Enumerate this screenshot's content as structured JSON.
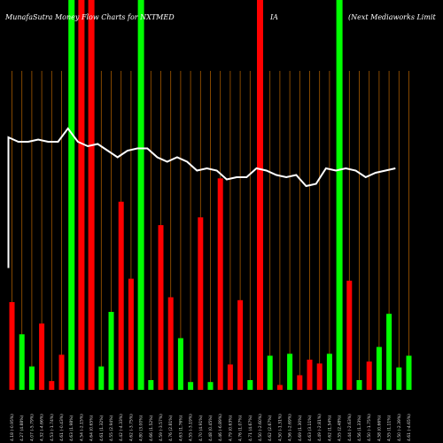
{
  "chart_data": {
    "type": "bar",
    "title_parts": [
      "MunafaSutra  Money Flow  Charts for NXTMED",
      "IA",
      "(Next Mediaworks Limit"
    ],
    "colors": {
      "up": "#00ff00",
      "down": "#ff0000",
      "grid": "#a65a00",
      "line": "#ffffff",
      "background": "#000000"
    },
    "bars": [
      {
        "label": "02 Fri Feb 2024",
        "color": "down",
        "value": 90,
        "highlight": false
      },
      {
        "label": "01 Thu Feb 2024",
        "color": "up",
        "value": 57,
        "highlight": false
      },
      {
        "label": "31 Wed Jan 2024",
        "color": "up",
        "value": 24,
        "highlight": false
      },
      {
        "label": "30 Tue Jan 2024",
        "color": "down",
        "value": 68,
        "highlight": false
      },
      {
        "label": "29 Mon Jan 2024",
        "color": "down",
        "value": 9,
        "highlight": false
      },
      {
        "label": "25 Thu Jan 2024",
        "color": "down",
        "value": 36,
        "highlight": false
      },
      {
        "label": "24 Wed Jan 2024",
        "color": "up",
        "value": 400,
        "highlight": true
      },
      {
        "label": "23 Tue Jan 2024",
        "color": "down",
        "value": 400,
        "highlight": true
      },
      {
        "label": "22 Mon Jan 2024",
        "color": "down",
        "value": 400,
        "highlight": true
      },
      {
        "label": "19 Fri Jan 2024",
        "color": "up",
        "value": 24,
        "highlight": false
      },
      {
        "label": "18 Thu Jan 2024",
        "color": "up",
        "value": 80,
        "highlight": false
      },
      {
        "label": "17 Wed Jan 2024",
        "color": "down",
        "value": 193,
        "highlight": false
      },
      {
        "label": "16 Tue Jan 2024",
        "color": "down",
        "value": 114,
        "highlight": false
      },
      {
        "label": "15 Mon Jan 2024",
        "color": "up",
        "value": 400,
        "highlight": true
      },
      {
        "label": "12 Fri Jan 2024",
        "color": "up",
        "value": 10,
        "highlight": false
      },
      {
        "label": "11 Thu Jan 2024",
        "color": "down",
        "value": 169,
        "highlight": false
      },
      {
        "label": "10 Wed Jan 2024",
        "color": "down",
        "value": 95,
        "highlight": false
      },
      {
        "label": "09 Tue Jan 2024",
        "color": "up",
        "value": 53,
        "highlight": false
      },
      {
        "label": "08 Mon Jan 2024",
        "color": "up",
        "value": 8,
        "highlight": false
      },
      {
        "label": "05 Fri Jan 2024",
        "color": "down",
        "value": 177,
        "highlight": false
      },
      {
        "label": "04 Thu Jan 2024",
        "color": "up",
        "value": 8,
        "highlight": false
      },
      {
        "label": "03 Wed Jan 2024",
        "color": "down",
        "value": 217,
        "highlight": false
      },
      {
        "label": "02 Tue Jan 2024",
        "color": "down",
        "value": 26,
        "highlight": false
      },
      {
        "label": "01 Mon Jan 2024",
        "color": "down",
        "value": 92,
        "highlight": false
      },
      {
        "label": "29 Fri Dec 2023",
        "color": "up",
        "value": 10,
        "highlight": false
      },
      {
        "label": "28 Thu Dec 2023",
        "color": "down",
        "value": 400,
        "highlight": true
      },
      {
        "label": "27 Wed Dec 2023",
        "color": "up",
        "value": 35,
        "highlight": false
      },
      {
        "label": "26 Tue Dec 2023",
        "color": "down",
        "value": 5,
        "highlight": false
      },
      {
        "label": "22 Fri Dec 2023",
        "color": "up",
        "value": 37,
        "highlight": false
      },
      {
        "label": "21 Thu Dec 2023",
        "color": "down",
        "value": 15,
        "highlight": false
      },
      {
        "label": "20 Wed Dec 2023",
        "color": "down",
        "value": 31,
        "highlight": false
      },
      {
        "label": "19 Tue Dec 2023",
        "color": "down",
        "value": 27,
        "highlight": false
      },
      {
        "label": "18 Mon Dec 2023",
        "color": "up",
        "value": 37,
        "highlight": false
      },
      {
        "label": "15 Fri Dec 2023",
        "color": "up",
        "value": 400,
        "highlight": true
      },
      {
        "label": "14 Thu Dec 2023",
        "color": "down",
        "value": 112,
        "highlight": false
      },
      {
        "label": "13 Wed Dec 2023",
        "color": "up",
        "value": 10,
        "highlight": false
      },
      {
        "label": "12 Tue Dec 2023",
        "color": "down",
        "value": 29,
        "highlight": false
      },
      {
        "label": "11 Mon Dec 2023",
        "color": "up",
        "value": 44,
        "highlight": false
      },
      {
        "label": "08 Fri Dec 2023",
        "color": "up",
        "value": 78,
        "highlight": false
      },
      {
        "label": "07 Thu Dec 2023",
        "color": "up",
        "value": 23,
        "highlight": false
      },
      {
        "label": "06 Wed Dec 2023",
        "color": "up",
        "value": 35,
        "highlight": false
      }
    ],
    "tick_labels": [
      "4.18 (-0.95%)",
      "4.27 (4.88%)",
      "4.07 (-5.79%)",
      "4.32 (-4.66%)",
      "4.53 (-1.74%)",
      "4.61 (-0.43%)",
      "4.63 (1.98%)",
      "4.54 (-2.15%)",
      "4.64 (0.65%)",
      "4.61 (1.32%)",
      "4.55 (2.94%)",
      "4.42 (-4.33%)",
      "4.62 (-3.75%)",
      "4.80 (3.00%)",
      "4.66 (1.52%)",
      "4.59 (-3.57%)",
      "4.76 (2.81%)",
      "4.63 (1.76%)",
      "4.55 (-3.19%)",
      "4.70 (4.91%)",
      "4.48 (0.45%)",
      "4.46 (-6.89%)",
      "4.79 (0.63%)",
      "4.76 (1.07%)",
      "4.71 (4.67%)",
      "4.50 (-2.60%)",
      "4.62 (2.67%)",
      "4.50 (-1.31%)",
      "4.56 (-2.69%)",
      "4.69 (1.30%)",
      "4.63 (3.11%)",
      "4.49 (-2.81%)",
      "4.62 (1.54%)",
      "4.55 (2.48%)",
      "4.44 (-2.63%)",
      "4.56 (1.33%)",
      "4.50 (-1.75%)",
      "4.58 (0.66%)",
      "4.55 (1.11%)",
      "4.50 (-2.39%)",
      "4.61 (-4.65%)"
    ],
    "price_line": [
      4.84,
      4.82,
      4.82,
      4.83,
      4.82,
      4.82,
      4.88,
      4.82,
      4.8,
      4.81,
      4.78,
      4.75,
      4.78,
      4.79,
      4.79,
      4.75,
      4.73,
      4.75,
      4.73,
      4.69,
      4.7,
      4.69,
      4.65,
      4.66,
      4.66,
      4.7,
      4.69,
      4.67,
      4.66,
      4.67,
      4.62,
      4.63,
      4.7,
      4.69,
      4.7,
      4.69,
      4.66,
      4.68,
      4.69,
      4.7
    ]
  }
}
